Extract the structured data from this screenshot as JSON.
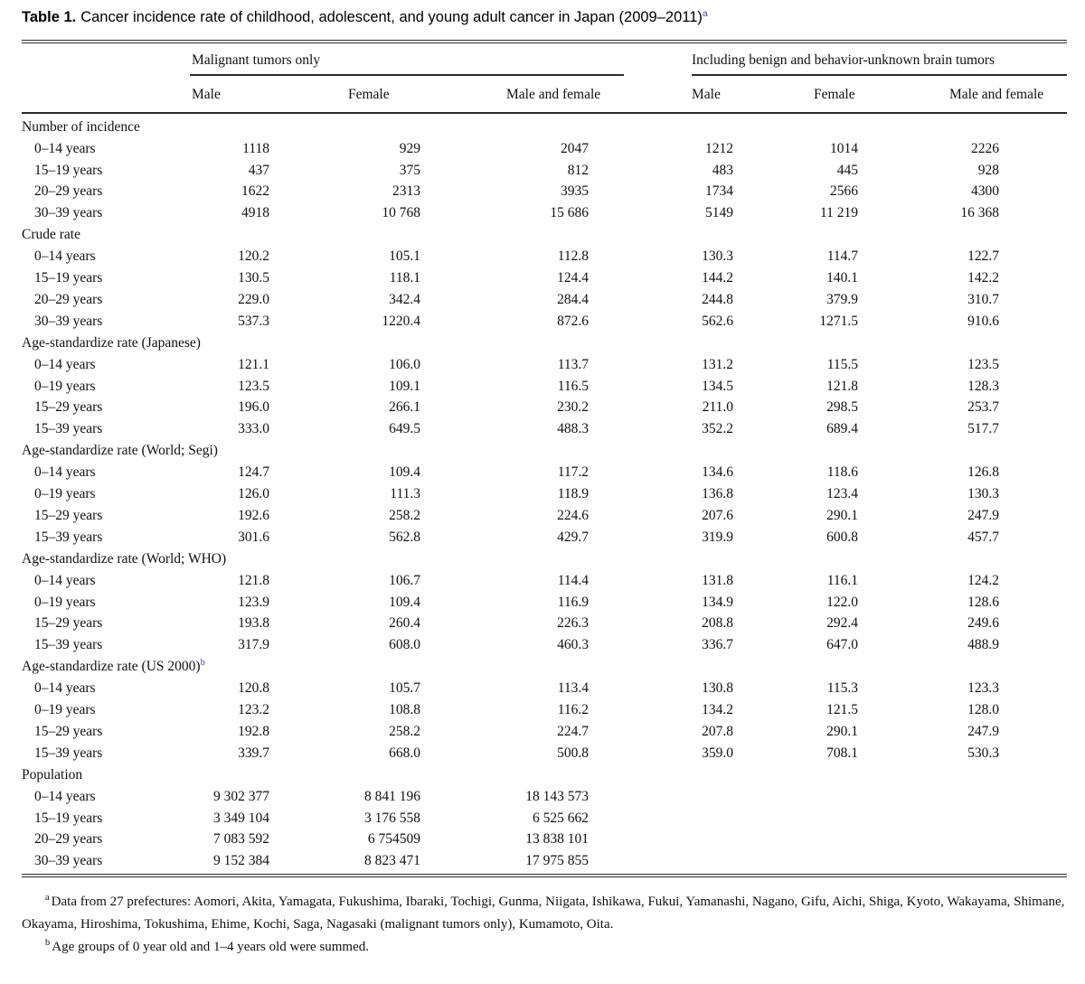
{
  "title": {
    "label": "Table 1.",
    "text": "Cancer incidence rate of childhood, adolescent, and young adult cancer in Japan (2009–2011)",
    "superscript": "a"
  },
  "table": {
    "group_headers": [
      {
        "label": "Malignant tumors only"
      },
      {
        "label": "Including benign and behavior-unknown brain tumors"
      }
    ],
    "column_headers": [
      "Male",
      "Female",
      "Male and female",
      "Male",
      "Female",
      "Male and female"
    ],
    "sections": [
      {
        "name": "Number of incidence",
        "superscript": "",
        "rows": [
          {
            "label": "0–14 years",
            "values": [
              "1118",
              "929",
              "2047",
              "1212",
              "1014",
              "2226"
            ]
          },
          {
            "label": "15–19 years",
            "values": [
              "437",
              "375",
              "812",
              "483",
              "445",
              "928"
            ]
          },
          {
            "label": "20–29 years",
            "values": [
              "1622",
              "2313",
              "3935",
              "1734",
              "2566",
              "4300"
            ]
          },
          {
            "label": "30–39 years",
            "values": [
              "4918",
              "10 768",
              "15 686",
              "5149",
              "11 219",
              "16 368"
            ]
          }
        ]
      },
      {
        "name": "Crude rate",
        "superscript": "",
        "rows": [
          {
            "label": "0–14 years",
            "values": [
              "120.2",
              "105.1",
              "112.8",
              "130.3",
              "114.7",
              "122.7"
            ]
          },
          {
            "label": "15–19 years",
            "values": [
              "130.5",
              "118.1",
              "124.4",
              "144.2",
              "140.1",
              "142.2"
            ]
          },
          {
            "label": "20–29 years",
            "values": [
              "229.0",
              "342.4",
              "284.4",
              "244.8",
              "379.9",
              "310.7"
            ]
          },
          {
            "label": "30–39 years",
            "values": [
              "537.3",
              "1220.4",
              "872.6",
              "562.6",
              "1271.5",
              "910.6"
            ]
          }
        ]
      },
      {
        "name": "Age-standardize rate (Japanese)",
        "superscript": "",
        "rows": [
          {
            "label": "0–14 years",
            "values": [
              "121.1",
              "106.0",
              "113.7",
              "131.2",
              "115.5",
              "123.5"
            ]
          },
          {
            "label": "0–19 years",
            "values": [
              "123.5",
              "109.1",
              "116.5",
              "134.5",
              "121.8",
              "128.3"
            ]
          },
          {
            "label": "15–29 years",
            "values": [
              "196.0",
              "266.1",
              "230.2",
              "211.0",
              "298.5",
              "253.7"
            ]
          },
          {
            "label": "15–39 years",
            "values": [
              "333.0",
              "649.5",
              "488.3",
              "352.2",
              "689.4",
              "517.7"
            ]
          }
        ]
      },
      {
        "name": "Age-standardize rate (World; Segi)",
        "superscript": "",
        "rows": [
          {
            "label": "0–14 years",
            "values": [
              "124.7",
              "109.4",
              "117.2",
              "134.6",
              "118.6",
              "126.8"
            ]
          },
          {
            "label": "0–19 years",
            "values": [
              "126.0",
              "111.3",
              "118.9",
              "136.8",
              "123.4",
              "130.3"
            ]
          },
          {
            "label": "15–29 years",
            "values": [
              "192.6",
              "258.2",
              "224.6",
              "207.6",
              "290.1",
              "247.9"
            ]
          },
          {
            "label": "15–39 years",
            "values": [
              "301.6",
              "562.8",
              "429.7",
              "319.9",
              "600.8",
              "457.7"
            ]
          }
        ]
      },
      {
        "name": "Age-standardize rate (World; WHO)",
        "superscript": "",
        "rows": [
          {
            "label": "0–14 years",
            "values": [
              "121.8",
              "106.7",
              "114.4",
              "131.8",
              "116.1",
              "124.2"
            ]
          },
          {
            "label": "0–19 years",
            "values": [
              "123.9",
              "109.4",
              "116.9",
              "134.9",
              "122.0",
              "128.6"
            ]
          },
          {
            "label": "15–29 years",
            "values": [
              "193.8",
              "260.4",
              "226.3",
              "208.8",
              "292.4",
              "249.6"
            ]
          },
          {
            "label": "15–39 years",
            "values": [
              "317.9",
              "608.0",
              "460.3",
              "336.7",
              "647.0",
              "488.9"
            ]
          }
        ]
      },
      {
        "name": "Age-standardize rate (US 2000)",
        "superscript": "b",
        "rows": [
          {
            "label": "0–14 years",
            "values": [
              "120.8",
              "105.7",
              "113.4",
              "130.8",
              "115.3",
              "123.3"
            ]
          },
          {
            "label": "0–19 years",
            "values": [
              "123.2",
              "108.8",
              "116.2",
              "134.2",
              "121.5",
              "128.0"
            ]
          },
          {
            "label": "15–29 years",
            "values": [
              "192.8",
              "258.2",
              "224.7",
              "207.8",
              "290.1",
              "247.9"
            ]
          },
          {
            "label": "15–39 years",
            "values": [
              "339.7",
              "668.0",
              "500.8",
              "359.0",
              "708.1",
              "530.3"
            ]
          }
        ]
      },
      {
        "name": "Population",
        "superscript": "",
        "rows": [
          {
            "label": "0–14 years",
            "values": [
              "9 302 377",
              "8 841 196",
              "18 143 573",
              "",
              "",
              ""
            ]
          },
          {
            "label": "15–19 years",
            "values": [
              "3 349 104",
              "3 176 558",
              "6 525 662",
              "",
              "",
              ""
            ]
          },
          {
            "label": "20–29 years",
            "values": [
              "7 083 592",
              "6 754509",
              "13 838 101",
              "",
              "",
              ""
            ]
          },
          {
            "label": "30–39 years",
            "values": [
              "9 152 384",
              "8 823 471",
              "17 975 855",
              "",
              "",
              ""
            ]
          }
        ]
      }
    ]
  },
  "footnotes": [
    {
      "marker": "a",
      "text": "Data from 27 prefectures: Aomori, Akita, Yamagata, Fukushima, Ibaraki, Tochigi, Gunma, Niigata, Ishikawa, Fukui, Yamanashi, Nagano, Gifu, Aichi, Shiga, Kyoto, Wakayama, Shimane, Okayama, Hiroshima, Tokushima, Ehime, Kochi, Saga, Nagasaki (malignant tumors only), Kumamoto, Oita."
    },
    {
      "marker": "b",
      "text": "Age groups of 0 year old and 1–4 years old were summed."
    }
  ],
  "colors": {
    "text": "#111111",
    "rule": "#2b2b2b",
    "superscript_link": "#3d3da8"
  }
}
